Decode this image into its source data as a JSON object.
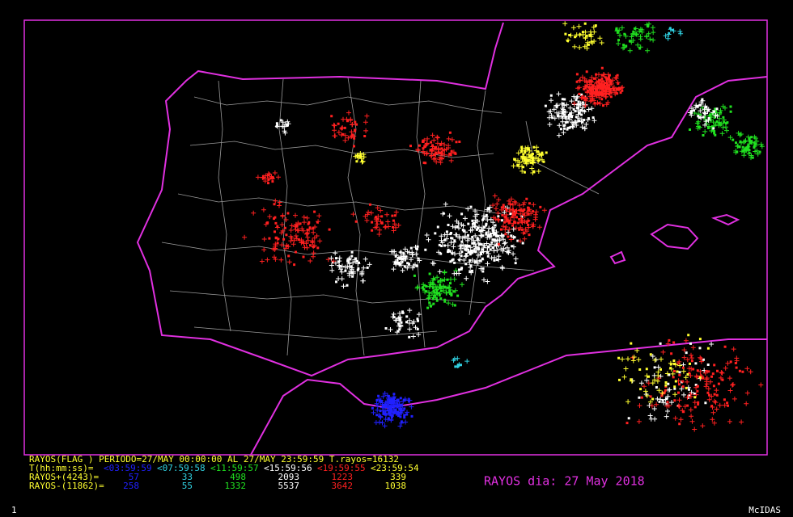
{
  "header": {
    "line": "RAYOS(FLAG ) PERIODO=27/MAY 00:00:00 AL 27/MAY 23:59:59  T.rayos=16132"
  },
  "legend": {
    "time_label": "T(hh:mm:ss)=",
    "intervals": [
      {
        "label": "<03:59:59",
        "color": "#2020ff"
      },
      {
        "label": "<07:59:58",
        "color": "#30d0e0"
      },
      {
        "label": "<11:59:57",
        "color": "#20e020"
      },
      {
        "label": "<15:59:56",
        "color": "#ffffff"
      },
      {
        "label": "<19:59:55",
        "color": "#ff2020"
      },
      {
        "label": "<23:59:54",
        "color": "#ffff30"
      }
    ],
    "positive": {
      "label": "RAYOS+(4243)=",
      "values": [
        57,
        33,
        498,
        2093,
        1223,
        339
      ]
    },
    "negative": {
      "label": "RAYOS-(11862)=",
      "values": [
        258,
        55,
        1332,
        5537,
        3642,
        1038
      ]
    }
  },
  "title": "RAYOS dia: 27 May 2018",
  "footer": {
    "left": "1",
    "right": "McIDAS"
  }
}
